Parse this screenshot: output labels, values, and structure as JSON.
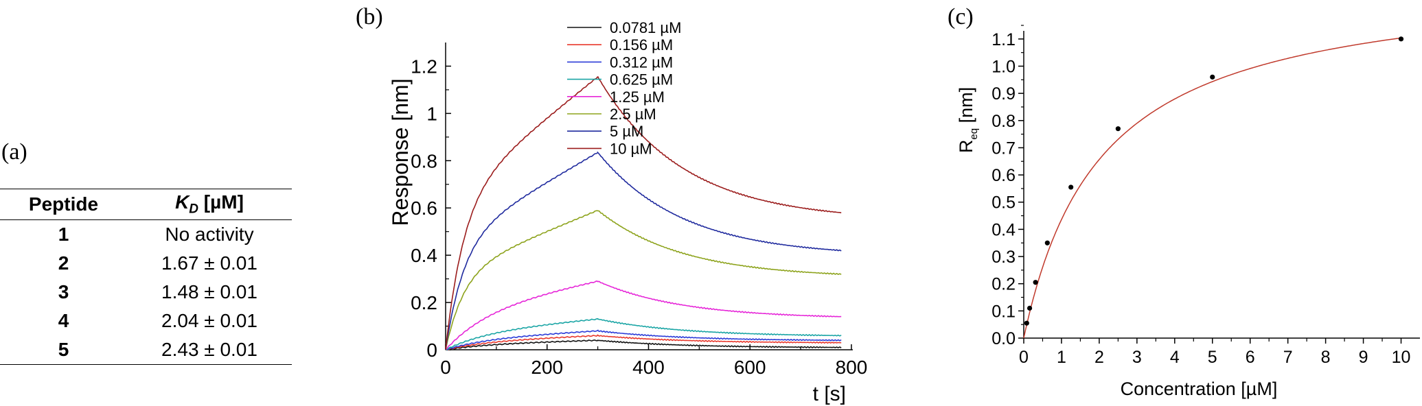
{
  "panels": {
    "a": "(a)",
    "b": "(b)",
    "c": "(c)"
  },
  "table": {
    "headers": {
      "peptide": "Peptide",
      "kd_symbol": "K",
      "kd_sub": "D",
      "kd_unit": " [µM]"
    },
    "rows": [
      {
        "peptide": "1",
        "kd": "No activity"
      },
      {
        "peptide": "2",
        "kd": "1.67 ± 0.01"
      },
      {
        "peptide": "3",
        "kd": "1.48 ± 0.01"
      },
      {
        "peptide": "4",
        "kd": "2.04 ± 0.01"
      },
      {
        "peptide": "5",
        "kd": "2.43 ± 0.01"
      }
    ]
  },
  "chart_data": [
    {
      "type": "line",
      "xlabel": "t [s]",
      "ylabel": "Response [nm]",
      "xlim": [
        0,
        800
      ],
      "ylim": [
        0,
        1.3
      ],
      "xticks": [
        "0",
        "200",
        "400",
        "600",
        "800"
      ],
      "yticks": [
        "0",
        "0.2",
        "0.4",
        "0.6",
        "0.8",
        "1",
        "1.2"
      ],
      "legend_position": "top-right",
      "association_end_s": 300,
      "series": [
        {
          "name": "0.0781 µM",
          "color": "#111111",
          "values_at_300s": 0.04,
          "values_at_780s": 0.01
        },
        {
          "name": "0.156 µM",
          "color": "#e8382c",
          "values_at_300s": 0.06,
          "values_at_780s": 0.03
        },
        {
          "name": "0.312 µM",
          "color": "#2b3bd8",
          "values_at_300s": 0.08,
          "values_at_780s": 0.04
        },
        {
          "name": "0.625 µM",
          "color": "#1aa5a5",
          "values_at_300s": 0.13,
          "values_at_780s": 0.06
        },
        {
          "name": "1.25 µM",
          "color": "#e626d8",
          "values_at_300s": 0.29,
          "values_at_780s": 0.14
        },
        {
          "name": "2.5 µM",
          "color": "#8da31c",
          "values_at_300s": 0.59,
          "values_at_780s": 0.32
        },
        {
          "name": "5 µM",
          "color": "#1f2a9e",
          "values_at_300s": 0.835,
          "values_at_780s": 0.42
        },
        {
          "name": "10 µM",
          "color": "#9b1c1c",
          "values_at_300s": 1.155,
          "values_at_780s": 0.58
        }
      ]
    },
    {
      "type": "scatter",
      "xlabel": "Concentration [µM]",
      "ylabel": "R",
      "ylabel_sub": "eq",
      "ylabel_unit": " [nm]",
      "xlim": [
        0,
        10.5
      ],
      "ylim": [
        0,
        1.15
      ],
      "xticks": [
        "0",
        "1",
        "2",
        "3",
        "4",
        "5",
        "6",
        "7",
        "8",
        "9",
        "10"
      ],
      "yticks": [
        "0.0",
        "0.1",
        "0.2",
        "0.3",
        "0.4",
        "0.5",
        "0.6",
        "0.7",
        "0.8",
        "0.9",
        "1.0",
        "1.1"
      ],
      "fit_color": "#c0392b",
      "points": [
        {
          "x": 0.0781,
          "y": 0.055
        },
        {
          "x": 0.156,
          "y": 0.11
        },
        {
          "x": 0.312,
          "y": 0.205
        },
        {
          "x": 0.625,
          "y": 0.35
        },
        {
          "x": 1.25,
          "y": 0.555
        },
        {
          "x": 2.5,
          "y": 0.77
        },
        {
          "x": 5,
          "y": 0.96
        },
        {
          "x": 10,
          "y": 1.1
        }
      ]
    }
  ]
}
